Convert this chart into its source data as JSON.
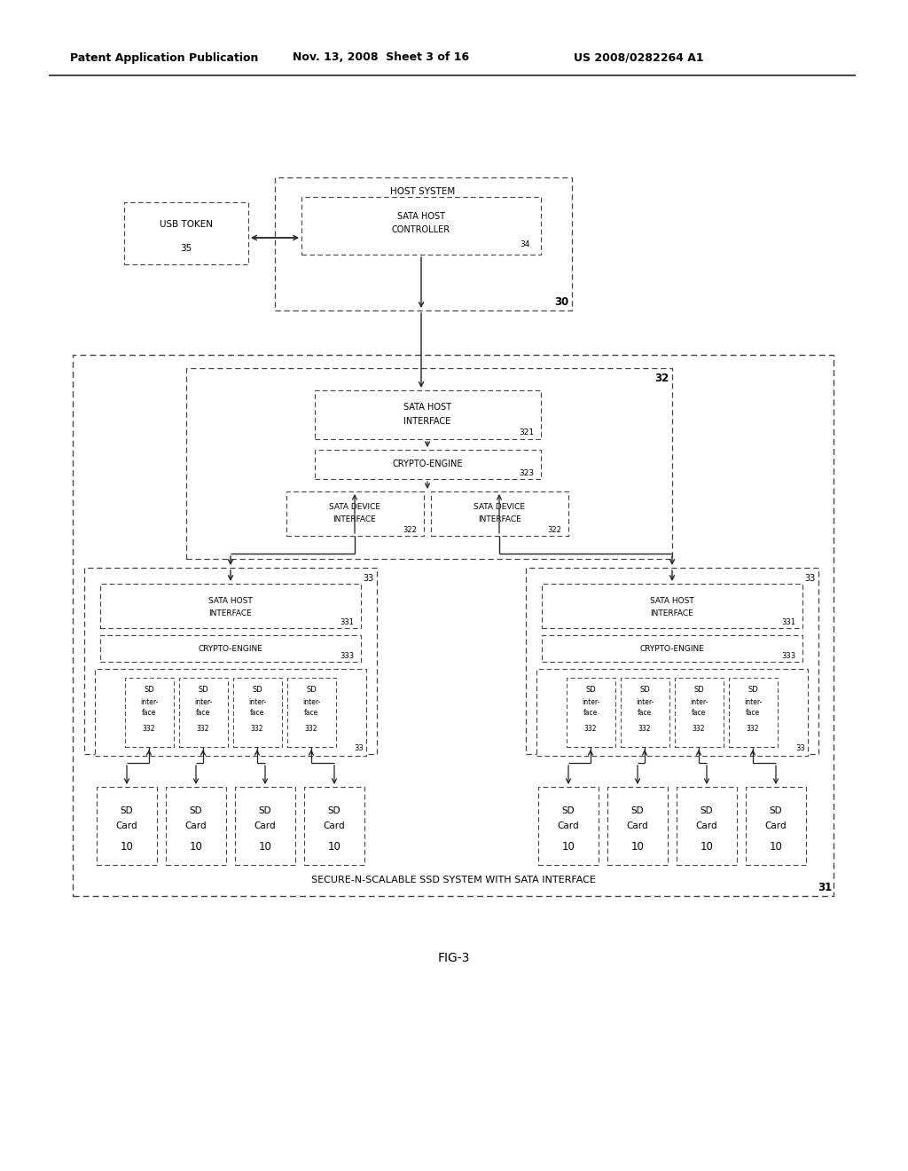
{
  "bg_color": "#ffffff",
  "header_left": "Patent Application Publication",
  "header_mid": "Nov. 13, 2008  Sheet 3 of 16",
  "header_right": "US 2008/0282264 A1",
  "fig_label": "FIG-3",
  "diagram_title": "SECURE-N-SCALABLE SSD SYSTEM WITH SATA INTERFACE",
  "label_31": "31",
  "label_32": "32",
  "label_30": "30",
  "label_35": "35",
  "label_34": "34",
  "label_321": "321",
  "label_323": "323",
  "label_322": "322",
  "label_33": "33",
  "label_331": "331",
  "label_333": "333",
  "label_332": "332",
  "label_10": "10"
}
